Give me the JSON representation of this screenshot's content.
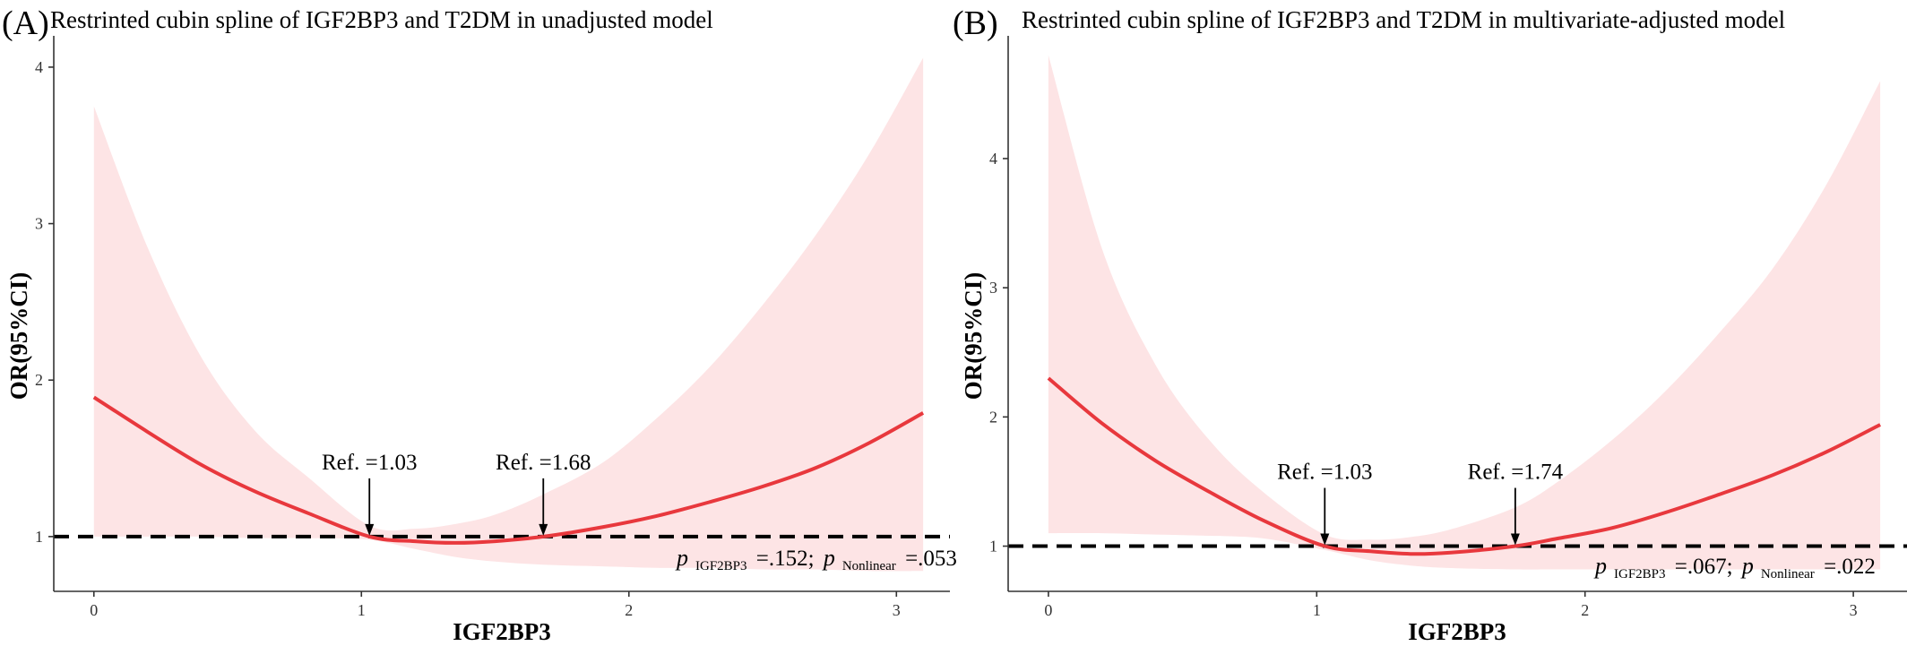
{
  "chart_data": [
    {
      "panel_label": "(A)",
      "type": "line",
      "title": "Restrinted cubin spline of IGF2BP3 and T2DM in unadjusted model",
      "xlabel": "IGF2BP3",
      "ylabel": "OR(95%CI)",
      "xlim": [
        -0.15,
        3.2
      ],
      "ylim": [
        0.65,
        4.2
      ],
      "xticks": [
        0,
        1,
        2,
        3
      ],
      "yticks": [
        1,
        2,
        3,
        4
      ],
      "reference_line_y": 1,
      "series": [
        {
          "x": [
            0,
            0.2,
            0.4,
            0.6,
            0.8,
            1.03,
            1.2,
            1.35,
            1.5,
            1.68,
            1.9,
            2.1,
            2.3,
            2.5,
            2.7,
            2.9,
            3.1
          ],
          "y": [
            1.89,
            1.67,
            1.46,
            1.29,
            1.15,
            1.0,
            0.97,
            0.96,
            0.97,
            1.0,
            1.06,
            1.13,
            1.22,
            1.32,
            1.44,
            1.6,
            1.79
          ],
          "lower": [
            1.0,
            1.0,
            1.0,
            0.99,
            0.99,
            0.98,
            0.92,
            0.87,
            0.84,
            0.82,
            0.81,
            0.8,
            0.8,
            0.79,
            0.79,
            0.78,
            0.78
          ],
          "upper": [
            3.75,
            2.85,
            2.15,
            1.68,
            1.38,
            1.07,
            1.05,
            1.08,
            1.14,
            1.27,
            1.47,
            1.75,
            2.08,
            2.48,
            2.93,
            3.45,
            4.06
          ]
        }
      ],
      "annotations": [
        {
          "text": "Ref. =1.03",
          "x": 1.03,
          "y": 1.0
        },
        {
          "text": "Ref. =1.68",
          "x": 1.68,
          "y": 1.0
        }
      ],
      "p_text": {
        "p1_symbol": "p",
        "p1_sub": "IGF2BP3",
        "p1_val": " =.152; ",
        "p2_symbol": "p",
        "p2_sub": "Nonlinear",
        "p2_val": " =.053"
      }
    },
    {
      "panel_label": "(B)",
      "type": "line",
      "title": "Restrinted cubin spline of IGF2BP3 and T2DM in multivariate-adjusted model",
      "xlabel": "IGF2BP3",
      "ylabel": "OR(95%CI)",
      "xlim": [
        -0.15,
        3.2
      ],
      "ylim": [
        0.65,
        4.95
      ],
      "xticks": [
        0,
        1,
        2,
        3
      ],
      "yticks": [
        1,
        2,
        3,
        4
      ],
      "reference_line_y": 1,
      "series": [
        {
          "x": [
            0,
            0.2,
            0.4,
            0.6,
            0.8,
            1.03,
            1.2,
            1.35,
            1.5,
            1.74,
            1.9,
            2.1,
            2.3,
            2.5,
            2.7,
            2.9,
            3.1
          ],
          "y": [
            2.3,
            1.95,
            1.66,
            1.42,
            1.2,
            1.0,
            0.96,
            0.94,
            0.95,
            1.0,
            1.06,
            1.14,
            1.26,
            1.4,
            1.55,
            1.73,
            1.94
          ],
          "lower": [
            1.1,
            1.1,
            1.09,
            1.08,
            1.06,
            0.97,
            0.89,
            0.85,
            0.83,
            0.82,
            0.82,
            0.82,
            0.82,
            0.82,
            0.82,
            0.82,
            0.82
          ],
          "upper": [
            4.8,
            3.3,
            2.4,
            1.82,
            1.42,
            1.09,
            1.05,
            1.07,
            1.13,
            1.3,
            1.5,
            1.82,
            2.2,
            2.65,
            3.15,
            3.8,
            4.6
          ]
        }
      ],
      "annotations": [
        {
          "text": "Ref. =1.03",
          "x": 1.03,
          "y": 1.0
        },
        {
          "text": "Ref. =1.74",
          "x": 1.74,
          "y": 1.0
        }
      ],
      "p_text": {
        "p1_symbol": "p",
        "p1_sub": "IGF2BP3",
        "p1_val": " =.067; ",
        "p2_symbol": "p",
        "p2_sub": "Nonlinear",
        "p2_val": " =.022"
      }
    }
  ],
  "colors": {
    "line": "#e8383d",
    "band": "#fde4e5",
    "reference": "#000000",
    "axis": "#333333"
  }
}
